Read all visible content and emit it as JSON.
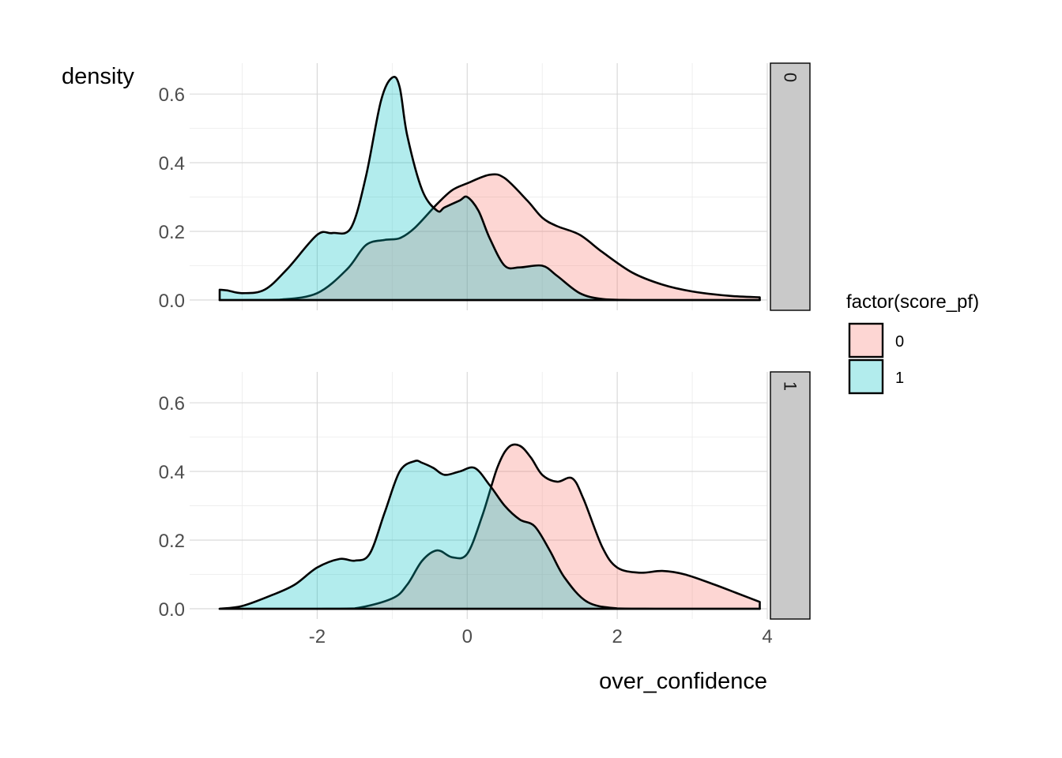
{
  "chart_data": {
    "type": "area",
    "subtype": "density",
    "xlabel": "over_confidence",
    "ylabel": "density",
    "xlim": [
      -3.7,
      4.0
    ],
    "ylim": [
      -0.03,
      0.69
    ],
    "x_ticks": [
      -2,
      0,
      2,
      4
    ],
    "x_tick_labels": [
      "-2",
      "0",
      "2",
      "4"
    ],
    "y_ticks": [
      0.0,
      0.2,
      0.4,
      0.6
    ],
    "y_tick_labels": [
      "0.0",
      "0.2",
      "0.4",
      "0.6"
    ],
    "grid": true,
    "facet_by": "score_pf",
    "legend": {
      "title": "factor(score_pf)",
      "position": "right",
      "entries": [
        {
          "label": "0",
          "color": "#F8766D"
        },
        {
          "label": "1",
          "color": "#00BFC4"
        }
      ]
    },
    "fill_opacity": 0.3,
    "panels": [
      {
        "strip_label": "0",
        "series": [
          {
            "group": "0",
            "color": "#F8766D",
            "x": [
              -3.3,
              -3.0,
              -2.5,
              -2.0,
              -1.6,
              -1.35,
              -1.1,
              -0.9,
              -0.7,
              -0.4,
              -0.2,
              0.0,
              0.3,
              0.5,
              0.8,
              1.0,
              1.2,
              1.5,
              1.8,
              2.2,
              2.6,
              3.0,
              3.5,
              3.9
            ],
            "y": [
              0.0,
              0.0,
              0.001,
              0.02,
              0.09,
              0.16,
              0.175,
              0.18,
              0.21,
              0.28,
              0.32,
              0.34,
              0.365,
              0.355,
              0.29,
              0.24,
              0.215,
              0.19,
              0.14,
              0.08,
              0.045,
              0.025,
              0.012,
              0.008
            ]
          },
          {
            "group": "1",
            "color": "#00BFC4",
            "x": [
              -3.3,
              -3.2,
              -3.0,
              -2.7,
              -2.4,
              -2.0,
              -1.8,
              -1.55,
              -1.35,
              -1.15,
              -1.0,
              -0.9,
              -0.8,
              -0.6,
              -0.4,
              -0.3,
              -0.1,
              0.0,
              0.15,
              0.3,
              0.5,
              0.7,
              1.0,
              1.2,
              1.5,
              1.8,
              2.2,
              3.0,
              3.5,
              3.9
            ],
            "y": [
              0.03,
              0.028,
              0.02,
              0.03,
              0.09,
              0.19,
              0.195,
              0.21,
              0.36,
              0.58,
              0.648,
              0.62,
              0.48,
              0.32,
              0.26,
              0.27,
              0.29,
              0.3,
              0.26,
              0.18,
              0.1,
              0.095,
              0.1,
              0.07,
              0.02,
              0.003,
              0.0,
              0.0,
              0.0,
              0.0
            ]
          }
        ]
      },
      {
        "strip_label": "1",
        "series": [
          {
            "group": "0",
            "color": "#F8766D",
            "x": [
              -3.3,
              -2.5,
              -2.0,
              -1.5,
              -1.0,
              -0.8,
              -0.6,
              -0.4,
              -0.2,
              0.0,
              0.2,
              0.4,
              0.55,
              0.7,
              0.85,
              1.0,
              1.2,
              1.4,
              1.55,
              1.8,
              2.0,
              2.3,
              2.6,
              2.9,
              3.3,
              3.6,
              3.9
            ],
            "y": [
              0.0,
              0.0,
              0.0,
              0.001,
              0.03,
              0.07,
              0.14,
              0.17,
              0.15,
              0.16,
              0.27,
              0.41,
              0.47,
              0.475,
              0.44,
              0.39,
              0.37,
              0.38,
              0.32,
              0.18,
              0.12,
              0.105,
              0.11,
              0.1,
              0.07,
              0.045,
              0.02
            ]
          },
          {
            "group": "1",
            "color": "#00BFC4",
            "x": [
              -3.3,
              -3.0,
              -2.6,
              -2.3,
              -2.0,
              -1.7,
              -1.5,
              -1.3,
              -1.1,
              -0.9,
              -0.7,
              -0.6,
              -0.45,
              -0.3,
              -0.1,
              0.1,
              0.3,
              0.5,
              0.7,
              0.9,
              1.1,
              1.3,
              1.6,
              2.0,
              2.5,
              3.0,
              3.5,
              3.9
            ],
            "y": [
              0.0,
              0.008,
              0.04,
              0.07,
              0.12,
              0.145,
              0.14,
              0.16,
              0.28,
              0.4,
              0.43,
              0.425,
              0.41,
              0.39,
              0.4,
              0.41,
              0.36,
              0.3,
              0.26,
              0.24,
              0.17,
              0.09,
              0.02,
              0.001,
              0.0,
              0.0,
              0.0,
              0.0
            ]
          }
        ]
      }
    ]
  }
}
